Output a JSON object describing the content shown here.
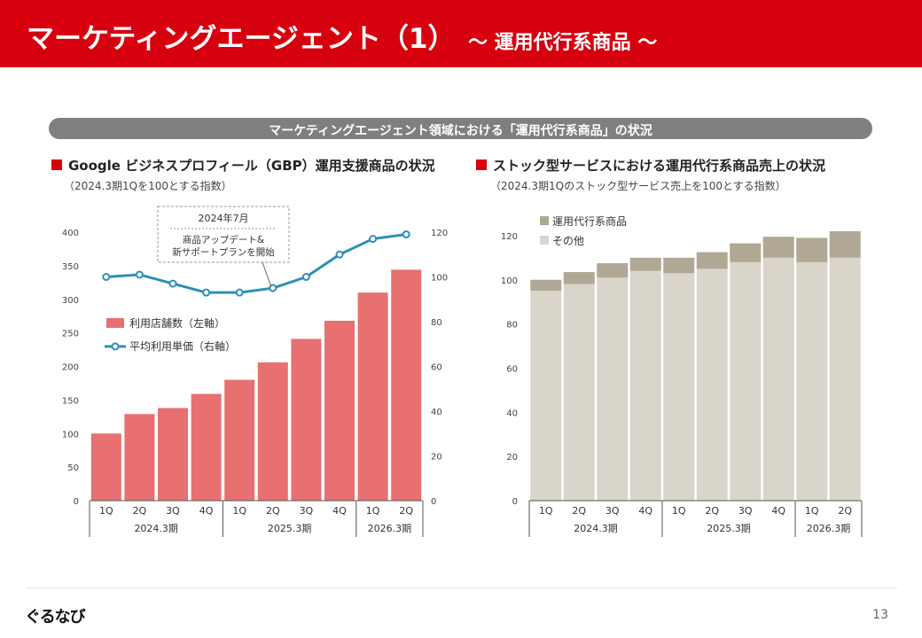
{
  "header": {
    "title": "マーケティングエージェント（1）",
    "subtitle": "～ 運用代行系商品 ～"
  },
  "banner": "マーケティングエージェント領域における「運用代行系商品」の状況",
  "left_section": {
    "title": "Google ビジネスプロフィール（GBP）運用支援商品の状況",
    "note": "（2024.3期1Qを100とする指数）"
  },
  "right_section": {
    "title": "ストック型サービスにおける運用代行系商品売上の状況",
    "note": "（2024.3期1Qのストック型サービス売上を100とする指数）"
  },
  "footer": {
    "logo": "ぐるなび",
    "page": "13"
  },
  "colors": {
    "brand_red": "#d7000f",
    "bar_red": "#e97070",
    "line_blue": "#2e8fb5",
    "other_beige": "#d9d5cb",
    "ops_taupe": "#b0a794"
  },
  "chart_data": [
    {
      "type": "bar+line",
      "quarters": [
        "1Q",
        "2Q",
        "3Q",
        "4Q",
        "1Q",
        "2Q",
        "3Q",
        "4Q",
        "1Q",
        "2Q"
      ],
      "fiscal_groups": [
        {
          "label": "2024.3期",
          "count": 4
        },
        {
          "label": "2025.3期",
          "count": 4
        },
        {
          "label": "2026.3期",
          "count": 2
        }
      ],
      "series": [
        {
          "name": "利用店舗数（左軸）",
          "kind": "bar",
          "axis": "left",
          "values": [
            100,
            129,
            138,
            159,
            180,
            206,
            241,
            268,
            310,
            344
          ]
        },
        {
          "name": "平均利用単価（右軸）",
          "kind": "line",
          "axis": "right",
          "values": [
            100,
            101,
            97,
            93,
            93,
            95,
            100,
            110,
            117,
            119
          ]
        }
      ],
      "left_axis": {
        "ticks": [
          0,
          50,
          100,
          150,
          200,
          250,
          300,
          350,
          400
        ],
        "ylim": [
          0,
          400
        ]
      },
      "right_axis": {
        "ticks": [
          0,
          20,
          40,
          60,
          80,
          100,
          120
        ],
        "ylim": [
          0,
          120
        ]
      },
      "annotation": {
        "title": "2024年7月",
        "text": [
          "商品アップデート&",
          "新サポートプランを開始"
        ]
      },
      "legend": "center-left"
    },
    {
      "type": "stacked_bar",
      "quarters": [
        "1Q",
        "2Q",
        "3Q",
        "4Q",
        "1Q",
        "2Q",
        "3Q",
        "4Q",
        "1Q",
        "2Q"
      ],
      "fiscal_groups": [
        {
          "label": "2024.3期",
          "count": 4
        },
        {
          "label": "2025.3期",
          "count": 4
        },
        {
          "label": "2026.3期",
          "count": 2
        }
      ],
      "series": [
        {
          "name": "その他",
          "values": [
            95,
            98,
            101,
            104,
            103,
            105,
            108,
            110,
            108,
            110
          ]
        },
        {
          "name": "運用代行系商品",
          "values": [
            5,
            5.5,
            6.5,
            6,
            7,
            7.5,
            8.5,
            9.5,
            11,
            12
          ]
        }
      ],
      "y_axis": {
        "ticks": [
          0,
          20,
          40,
          60,
          80,
          100,
          120
        ],
        "ylim": [
          0,
          130
        ]
      },
      "legend": "top-left"
    }
  ]
}
